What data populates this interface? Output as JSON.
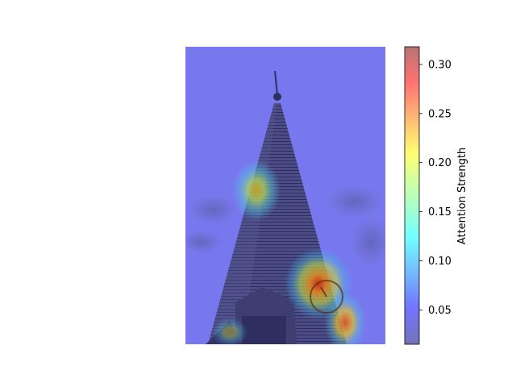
{
  "image": {
    "subject": "church steeple with clock",
    "overlay": "attention heatmap (jet colormap, semi-transparent)"
  },
  "colorbar": {
    "label": "Attention Strength",
    "colormap": "jet",
    "range": [
      0.015,
      0.318
    ],
    "ticks": [
      {
        "value": 0.05,
        "label": "0.05"
      },
      {
        "value": 0.1,
        "label": "0.10"
      },
      {
        "value": 0.15,
        "label": "0.15"
      },
      {
        "value": 0.2,
        "label": "0.20"
      },
      {
        "value": 0.25,
        "label": "0.25"
      },
      {
        "value": 0.3,
        "label": "0.30"
      }
    ]
  },
  "colors": {
    "base_overlay": "#7474f2",
    "sky": "#8a8ab0",
    "spire": "#4a4a82",
    "hot": "#d83a1c",
    "warm": "#e8b020",
    "mid": "#8ad060"
  }
}
